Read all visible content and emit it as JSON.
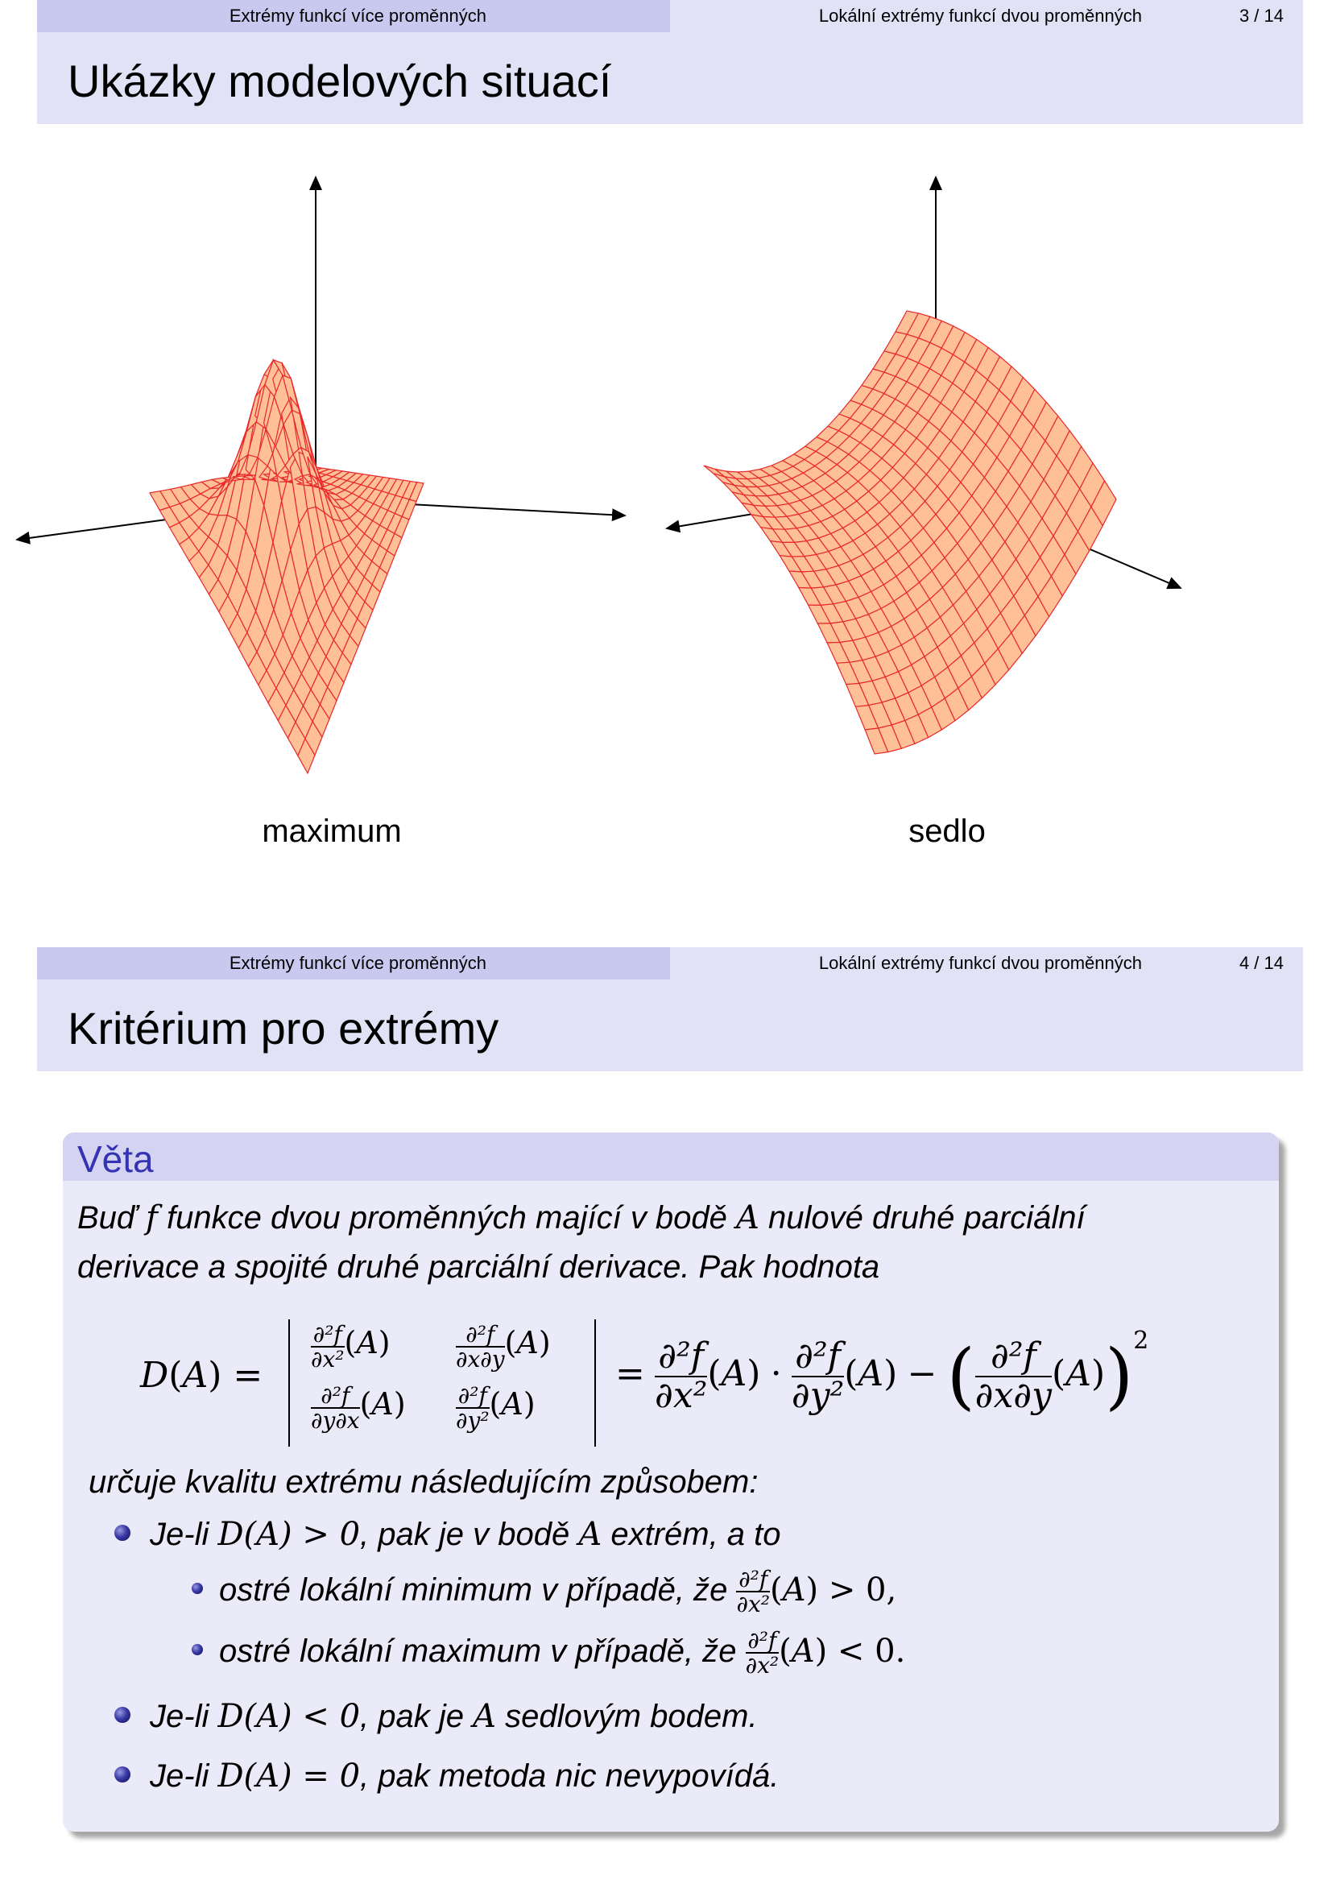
{
  "slide1": {
    "header": {
      "section": "Extrémy funkcí více proměnných",
      "subsection": "Lokální extrémy funkcí dvou proměnných",
      "page": "3 / 14"
    },
    "title": "Ukázky modelových situací",
    "plots": [
      {
        "caption": "maximum"
      },
      {
        "caption": "sedlo"
      }
    ],
    "colors": {
      "surface_fill": "#ffc098",
      "mesh": "#e8282a",
      "axis": "#000000"
    }
  },
  "slide2": {
    "header": {
      "section": "Extrémy funkcí více proměnných",
      "subsection": "Lokální extrémy funkcí dvou proměnných",
      "page": "4 / 14"
    },
    "title": "Kritérium pro extrémy",
    "theorem": {
      "title": "Věta",
      "line1_a": "Buď ",
      "line1_f": "f",
      "line1_b": " funkce dvou proměnných mající v bodě ",
      "line1_A": "A",
      "line1_c": " nulové druhé parciální",
      "line2": "derivace a spojité druhé parciální derivace. Pak hodnota",
      "formula": {
        "lhs": "D(A) =",
        "m11": "∂²f/∂x²(A)",
        "m12": "∂²f/∂x∂y(A)",
        "m21": "∂²f/∂y∂x(A)",
        "m22": "∂²f/∂y²(A)",
        "rhs": "= ∂²f/∂x²(A) · ∂²f/∂y²(A) − (∂²f/∂x∂y(A))²"
      },
      "after": "určuje kvalitu extrému následujícím způsobem:",
      "bullets": [
        {
          "level": 1,
          "a": "Je-li ",
          "m": "D(A) > 0",
          "b": ", pak je v bodě ",
          "m2": "A",
          "c": " extrém, a to"
        },
        {
          "level": 2,
          "a": "ostré lokální minimum v případě, že ",
          "m": "∂²f/∂x²(A) > 0,",
          "b": ""
        },
        {
          "level": 2,
          "a": "ostré lokální maximum v případě, že ",
          "m": "∂²f/∂x²(A) < 0.",
          "b": ""
        },
        {
          "level": 1,
          "a": "Je-li ",
          "m": "D(A) < 0",
          "b": ", pak je ",
          "m2": "A",
          "c": " sedlovým bodem."
        },
        {
          "level": 1,
          "a": "Je-li ",
          "m": "D(A) = 0",
          "b": ", pak metoda nic nevypovídá.",
          "m2": "",
          "c": ""
        }
      ]
    },
    "colors": {
      "header_dark": "#c9c9f0",
      "header_light": "#e2e2f7",
      "block_title": "#3333b3",
      "block_bg": "#eaeaf8"
    }
  }
}
